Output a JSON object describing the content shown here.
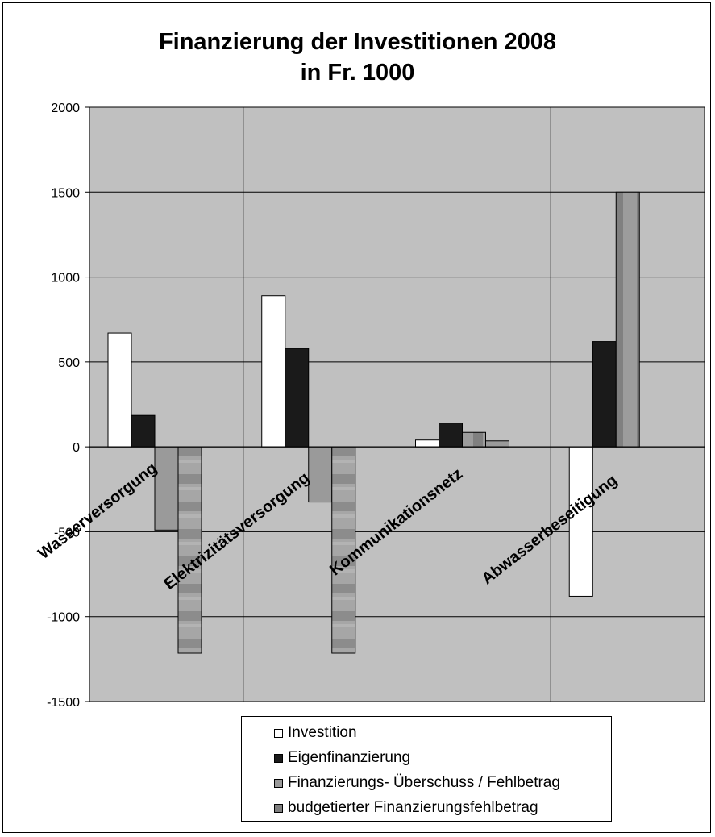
{
  "chart_data": {
    "type": "bar",
    "title": "Finanzierung der Investitionen 2008",
    "subtitle": "in Fr. 1000",
    "categories": [
      "Wasserversorgung",
      "Elektrizitätsversorgung",
      "Kommunikationsnetz",
      "Abwasserbeseitigung"
    ],
    "series": [
      {
        "name": "Investition",
        "color": "#ffffff",
        "values": [
          670,
          890,
          40,
          -880
        ]
      },
      {
        "name": "Eigenfinanzierung",
        "color": "#1a1a1a",
        "values": [
          185,
          580,
          140,
          620
        ]
      },
      {
        "name": "Finanzierungs- Überschuss / Fehlbetrag",
        "color": "#9a9a9a",
        "values": [
          -490,
          -325,
          85,
          1500
        ]
      },
      {
        "name": "budgetierter Finanzierungsfehlbetrag",
        "color": "#7f7f7f",
        "values": [
          -1215,
          -1215,
          35,
          null
        ]
      }
    ],
    "yticks": [
      "2000",
      "1500",
      "1000",
      "500",
      "0",
      "-500",
      "-1000",
      "-1500"
    ],
    "ylim": [
      -1500,
      2000
    ],
    "plot_background": "#c0c0c0",
    "grid": true,
    "legend_position": "bottom"
  }
}
